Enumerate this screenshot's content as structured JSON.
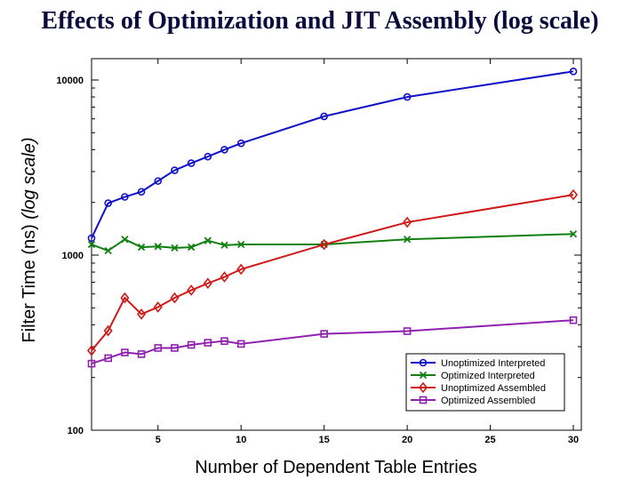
{
  "chart_data": {
    "type": "line",
    "title": "Effects of Optimization and JIT Assembly (log scale)",
    "xlabel": "Number of Dependent Table Entries",
    "ylabel_main": "Filter Time (ns)",
    "ylabel_scale": "(log scale)",
    "xlim": [
      1,
      30
    ],
    "ylim": [
      100,
      12500
    ],
    "yscale": "log",
    "xticks": [
      5,
      10,
      15,
      20,
      25,
      30
    ],
    "yticks": [
      100,
      1000,
      10000
    ],
    "grid": false,
    "legend_position": "bottom-right",
    "series": [
      {
        "name": "Unoptimized Interpreted",
        "color": "#1010c8",
        "marker": "circle",
        "x": [
          1,
          2,
          3,
          4,
          5,
          6,
          7,
          8,
          9,
          10,
          15,
          20,
          30
        ],
        "y": [
          1250,
          1980,
          2150,
          2300,
          2650,
          3050,
          3350,
          3650,
          4000,
          4350,
          6200,
          8000,
          11200
        ]
      },
      {
        "name": "Optimized Interpreted",
        "color": "#108010",
        "marker": "x",
        "x": [
          1,
          2,
          3,
          4,
          5,
          6,
          7,
          8,
          9,
          10,
          15,
          20,
          30
        ],
        "y": [
          1150,
          1060,
          1230,
          1110,
          1120,
          1100,
          1110,
          1210,
          1140,
          1150,
          1150,
          1230,
          1320
        ]
      },
      {
        "name": "Unoptimized Assembled",
        "color": "#d01818",
        "marker": "diamond",
        "x": [
          1,
          2,
          3,
          4,
          5,
          6,
          7,
          8,
          9,
          10,
          15,
          20,
          30
        ],
        "y": [
          285,
          370,
          570,
          460,
          505,
          570,
          630,
          690,
          750,
          830,
          1150,
          1540,
          2210
        ]
      },
      {
        "name": "Optimized Assembled",
        "color": "#9020b0",
        "marker": "square",
        "x": [
          1,
          2,
          3,
          4,
          5,
          6,
          7,
          8,
          9,
          10,
          15,
          20,
          30
        ],
        "y": [
          240,
          258,
          278,
          272,
          295,
          295,
          307,
          316,
          323,
          311,
          355,
          368,
          425
        ]
      }
    ]
  }
}
